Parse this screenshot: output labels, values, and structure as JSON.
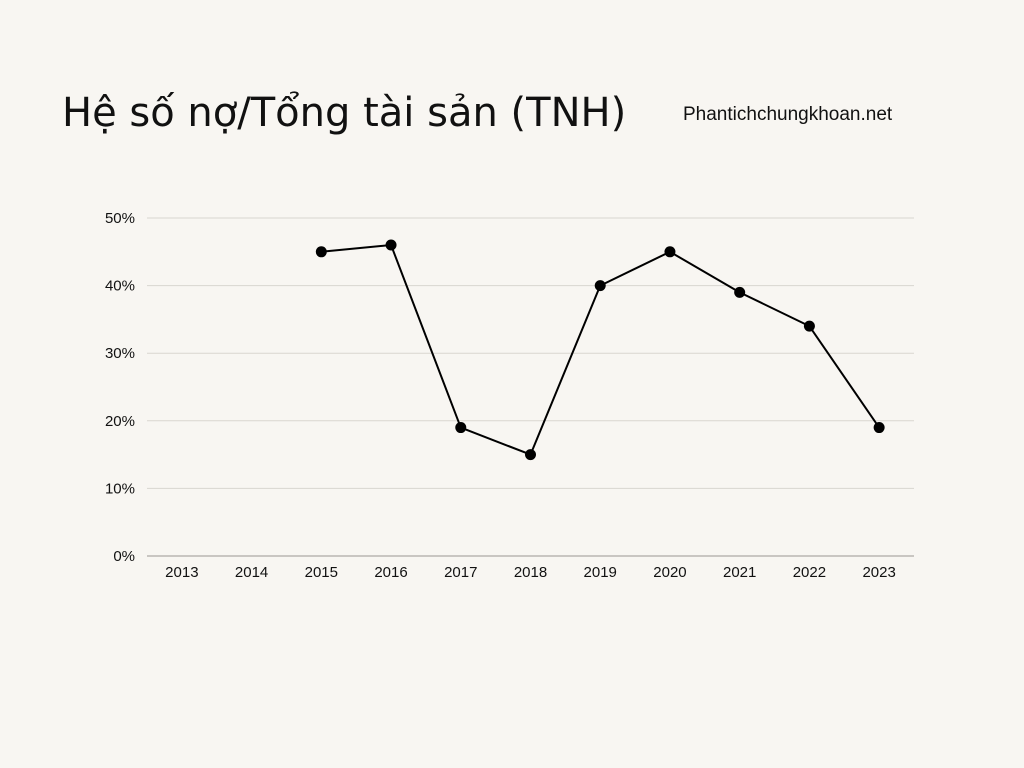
{
  "header": {
    "title": "Hệ số nợ/Tổng tài sản (TNH)",
    "source": "Phantichchungkhoan.net"
  },
  "colors": {
    "background": "#f8f6f2",
    "line": "#000000",
    "grid": "#d9d6d0",
    "axis": "#9a9792"
  },
  "chart_data": {
    "type": "line",
    "title": "Hệ số nợ/Tổng tài sản (TNH)",
    "xlabel": "",
    "ylabel": "",
    "categories": [
      "2013",
      "2014",
      "2015",
      "2016",
      "2017",
      "2018",
      "2019",
      "2020",
      "2021",
      "2022",
      "2023"
    ],
    "series": [
      {
        "values": [
          null,
          null,
          45,
          46,
          19,
          15,
          40,
          45,
          39,
          34,
          19
        ]
      }
    ],
    "ylim": [
      0,
      50
    ],
    "yticks": [
      0,
      10,
      20,
      30,
      40,
      50
    ],
    "ytick_labels": [
      "0%",
      "10%",
      "20%",
      "30%",
      "40%",
      "50%"
    ],
    "grid": true,
    "legend": "none"
  }
}
